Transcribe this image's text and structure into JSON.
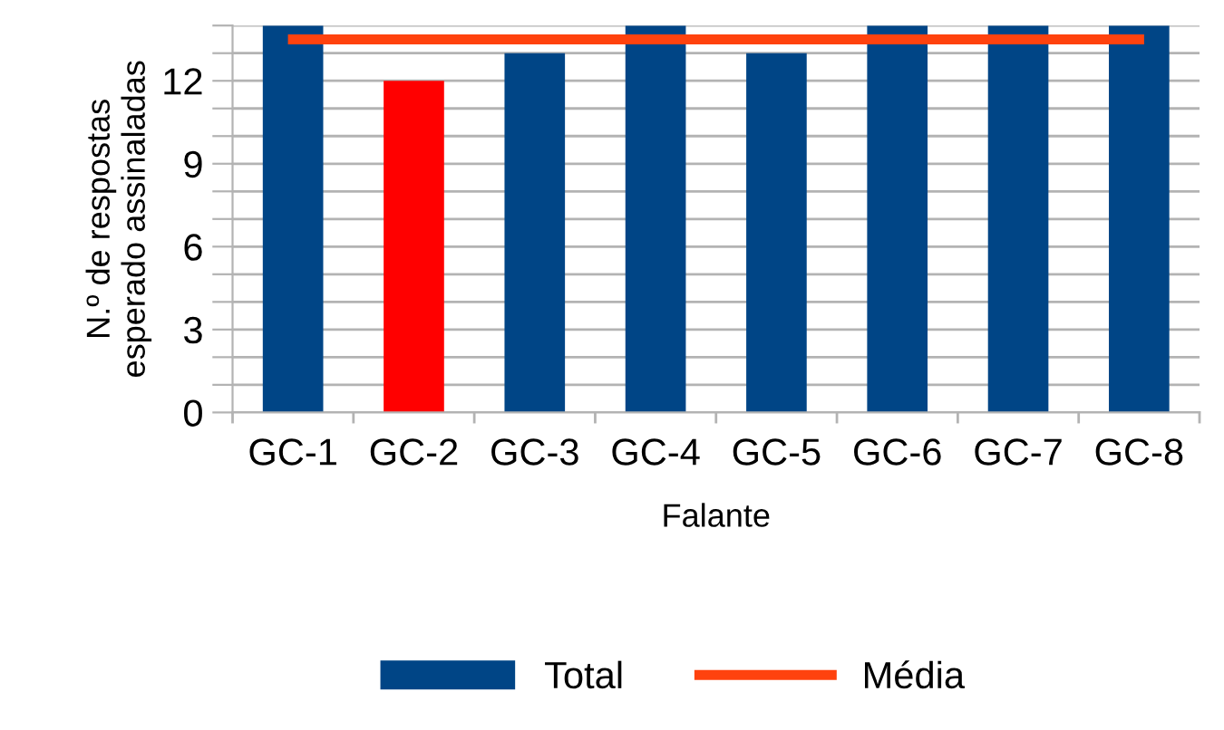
{
  "chart_data": {
    "type": "bar",
    "xlabel": "Falante",
    "ylabel": "N.º de respostas\nesperado assinaladas",
    "categories": [
      "GC-1",
      "GC-2",
      "GC-3",
      "GC-4",
      "GC-5",
      "GC-6",
      "GC-7",
      "GC-8"
    ],
    "series": [
      {
        "name": "Total",
        "color": "#004586",
        "colors": [
          "#004586",
          "#ff0000",
          "#004586",
          "#004586",
          "#004586",
          "#004586",
          "#004586",
          "#004586"
        ],
        "values": [
          14,
          12,
          13,
          14,
          13,
          14,
          14,
          14
        ]
      },
      {
        "name": "Média",
        "type": "line",
        "color": "#ff420e",
        "values": [
          13.5,
          13.5,
          13.5,
          13.5,
          13.5,
          13.5,
          13.5,
          13.5
        ]
      }
    ],
    "ylim": [
      0,
      14
    ],
    "yticks": [
      0,
      {
        "value": 1,
        "label": null
      },
      {
        "value": 2,
        "label": null
      },
      3,
      {
        "value": 4,
        "label": null
      },
      {
        "value": 5,
        "label": null
      },
      6,
      {
        "value": 7,
        "label": null
      },
      {
        "value": 8,
        "label": null
      },
      9,
      {
        "value": 10,
        "label": null
      },
      {
        "value": 11,
        "label": null
      },
      12,
      {
        "value": 13,
        "label": null
      },
      {
        "value": 14,
        "label": null
      }
    ],
    "grid": "y",
    "legend": "bottom",
    "marker": "none",
    "line_style": "solid"
  }
}
